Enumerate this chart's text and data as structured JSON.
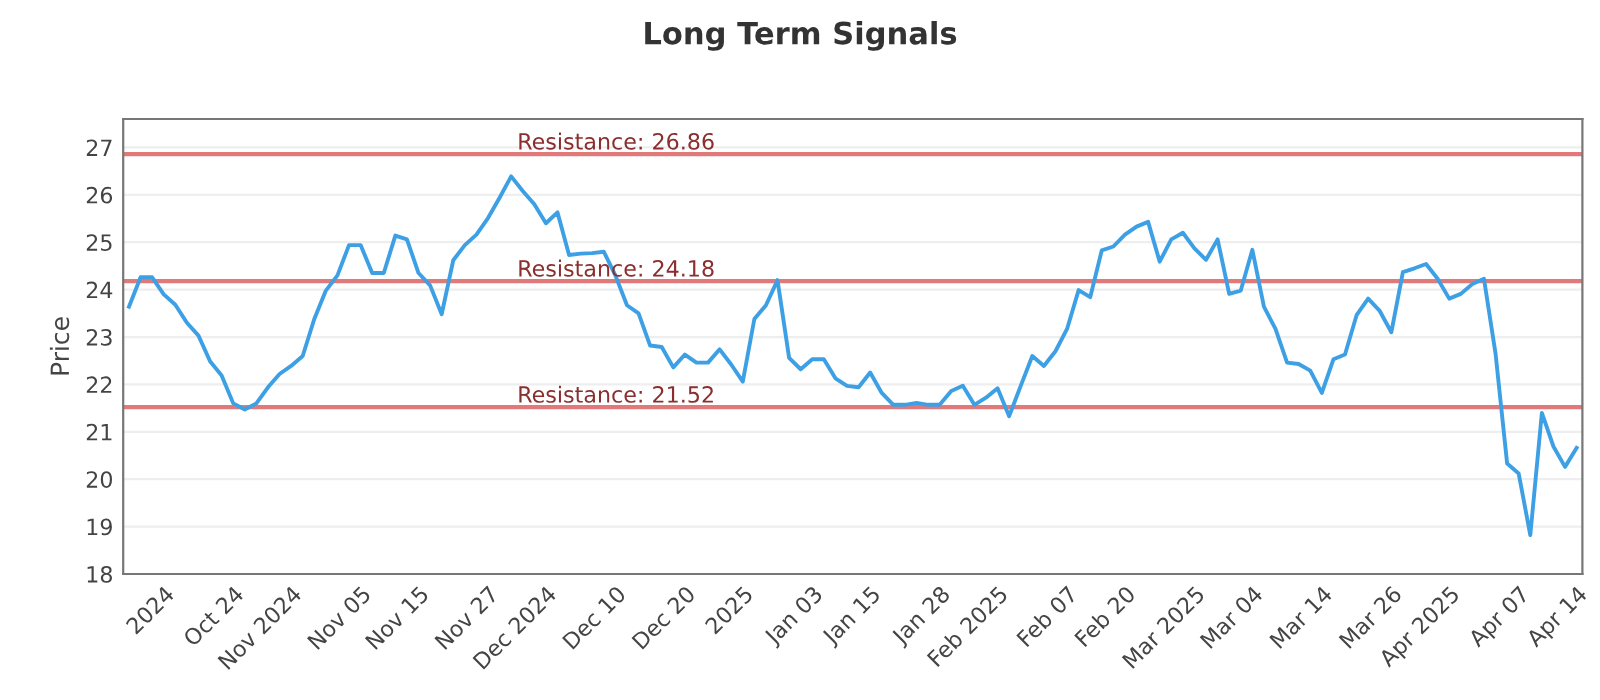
{
  "chart_data": {
    "type": "line",
    "title": "Long Term Signals",
    "ylabel": "Price",
    "categories": [
      null,
      null,
      null,
      "2024",
      null,
      null,
      null,
      null,
      null,
      "Oct 24",
      null,
      null,
      null,
      null,
      "Nov 2024",
      null,
      null,
      null,
      null,
      null,
      "Nov 05",
      null,
      null,
      null,
      null,
      "Nov 15",
      null,
      null,
      null,
      null,
      null,
      "Nov 27",
      null,
      null,
      null,
      null,
      "Dec 2024",
      null,
      null,
      null,
      null,
      null,
      "Dec 10",
      null,
      null,
      null,
      null,
      null,
      "Dec 20",
      null,
      null,
      null,
      null,
      "2025",
      null,
      null,
      null,
      null,
      null,
      "Jan 03",
      null,
      null,
      null,
      null,
      "Jan 15",
      null,
      null,
      null,
      null,
      null,
      "Jan 28",
      null,
      null,
      null,
      null,
      "Feb 2025",
      null,
      null,
      null,
      null,
      null,
      "Feb 07",
      null,
      null,
      null,
      null,
      "Feb 20",
      null,
      null,
      null,
      null,
      null,
      "Mar 2025",
      null,
      null,
      null,
      null,
      "Mar 04",
      null,
      null,
      null,
      null,
      null,
      "Mar 14",
      null,
      null,
      null,
      null,
      null,
      "Mar 26",
      null,
      null,
      null,
      null,
      "Apr 2025",
      null,
      null,
      null,
      null,
      null,
      "Apr 07",
      null,
      null,
      null,
      null,
      "Apr 14"
    ],
    "series": [
      {
        "color": "#3ea0e4",
        "values": [
          23.64,
          24.26,
          24.26,
          23.9,
          23.68,
          23.3,
          23.03,
          22.49,
          22.19,
          21.6,
          21.47,
          21.6,
          21.94,
          22.22,
          22.39,
          22.6,
          23.38,
          23.98,
          24.3,
          24.94,
          24.94,
          24.35,
          24.35,
          25.14,
          25.06,
          24.35,
          24.09,
          23.48,
          24.62,
          24.94,
          25.16,
          25.51,
          25.94,
          26.39,
          26.08,
          25.8,
          25.4,
          25.63,
          24.73,
          24.76,
          24.77,
          24.8,
          24.3,
          23.67,
          23.5,
          22.82,
          22.79,
          22.36,
          22.63,
          22.46,
          22.46,
          22.74,
          22.42,
          22.06,
          23.38,
          23.67,
          24.2,
          22.56,
          22.32,
          22.53,
          22.53,
          22.13,
          21.97,
          21.94,
          22.25,
          21.82,
          21.57,
          21.57,
          21.61,
          21.57,
          21.57,
          21.86,
          21.97,
          21.57,
          21.72,
          21.92,
          21.33,
          21.97,
          22.6,
          22.39,
          22.7,
          23.17,
          23.99,
          23.84,
          24.83,
          24.91,
          25.16,
          25.33,
          25.43,
          24.59,
          25.06,
          25.2,
          24.87,
          24.63,
          25.06,
          23.91,
          23.98,
          24.84,
          23.64,
          23.17,
          22.46,
          22.43,
          22.29,
          21.82,
          22.53,
          22.63,
          23.46,
          23.81,
          23.55,
          23.1,
          24.37,
          24.45,
          24.54,
          24.23,
          23.81,
          23.91,
          24.12,
          24.23,
          22.65,
          20.33,
          20.12,
          18.82,
          21.4,
          20.69,
          20.26,
          20.66
        ]
      }
    ],
    "ylim": [
      18,
      27.6
    ],
    "yticks": [
      18,
      19,
      20,
      21,
      22,
      23,
      24,
      25,
      26,
      27
    ],
    "grid": "y",
    "ref_lines": [
      {
        "axis": "y",
        "value": 26.86,
        "label": "Resistance: 26.86",
        "color": "#e07a7a"
      },
      {
        "axis": "y",
        "value": 24.18,
        "label": "Resistance: 24.18",
        "color": "#e07a7a"
      },
      {
        "axis": "y",
        "value": 21.52,
        "label": "Resistance: 21.52",
        "color": "#e07a7a"
      }
    ]
  }
}
